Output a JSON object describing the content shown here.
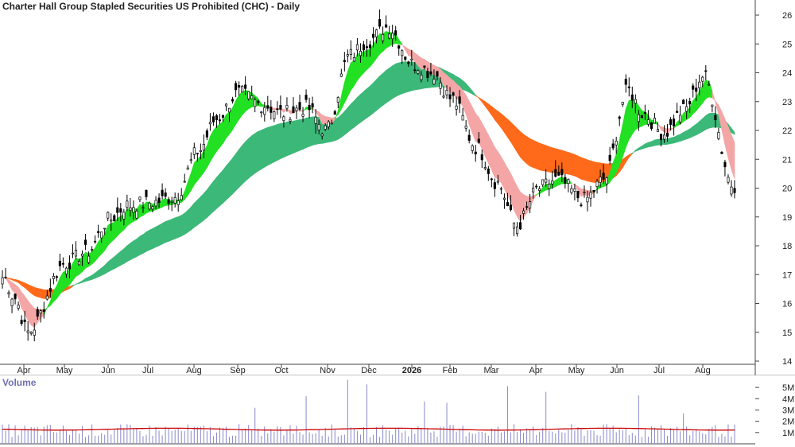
{
  "title": "Charter Hall Group Stapled Securities US Prohibited (CHC) - Daily",
  "volume_title": "Volume",
  "colors": {
    "up_band": "#22e022",
    "down_band": "#ff6a1a",
    "long_band": "#3cb878",
    "transition_band": "#f4a6a6",
    "candle": "#000000",
    "volume_bar": "#8888cc",
    "volume_ma": "#cc0000",
    "grid": "#dddddd"
  },
  "chart_data": [
    {
      "type": "candlestick",
      "title": "Charter Hall Group Stapled Securities US Prohibited (CHC) - Daily",
      "x_ticks": [
        "Apr",
        "May",
        "Jun",
        "Jul",
        "Aug",
        "Sep",
        "Oct",
        "Nov",
        "Dec",
        "2026",
        "Feb",
        "Mar",
        "Apr",
        "May",
        "Jun",
        "Jul",
        "Aug"
      ],
      "y_ticks": [
        14,
        15,
        16,
        17,
        18,
        19,
        20,
        21,
        22,
        23,
        24,
        25,
        26
      ],
      "ylim": [
        13.8,
        26.6
      ],
      "y_axis_side": "right",
      "grid": false,
      "close_path": [
        [
          "Apr",
          16.9
        ],
        [
          "Apr",
          16.2
        ],
        [
          "Apr",
          15.0
        ],
        [
          "May",
          17.4
        ],
        [
          "May",
          17.8
        ],
        [
          "Jun",
          18.9
        ],
        [
          "Jun",
          19.4
        ],
        [
          "Jul",
          19.5
        ],
        [
          "Jul",
          19.7
        ],
        [
          "Aug",
          21.3
        ],
        [
          "Aug",
          22.4
        ],
        [
          "Sep",
          23.3
        ],
        [
          "Sep",
          22.9
        ],
        [
          "Oct",
          22.6
        ],
        [
          "Oct",
          22.8
        ],
        [
          "Nov",
          22.0
        ],
        [
          "Nov",
          24.6
        ],
        [
          "Dec",
          25.1
        ],
        [
          "Dec",
          25.6
        ],
        [
          "2026",
          24.3
        ],
        [
          "2026",
          24.0
        ],
        [
          "Feb",
          23.1
        ],
        [
          "Feb",
          21.4
        ],
        [
          "Mar",
          20.2
        ],
        [
          "Mar",
          18.7
        ],
        [
          "Apr",
          20.0
        ],
        [
          "Apr",
          20.3
        ],
        [
          "May",
          19.6
        ],
        [
          "May",
          20.3
        ],
        [
          "Jun",
          23.4
        ],
        [
          "Jun",
          22.6
        ],
        [
          "Jul",
          21.9
        ],
        [
          "Jul",
          22.7
        ],
        [
          "Aug",
          23.9
        ],
        [
          "Aug",
          20.1
        ]
      ],
      "series": [
        {
          "values_note": "short-term moving average band (green rising, orange falling)"
        },
        {
          "values_note": "long-term moving average band (dark green rising, orange falling)"
        }
      ]
    },
    {
      "type": "bar",
      "title": "Volume",
      "y_ticks": [
        "1M",
        "2M",
        "3M",
        "4M",
        "5M"
      ],
      "ylim": [
        0,
        5500000
      ],
      "typical_volume": 1300000,
      "moving_average": 1300000
    }
  ]
}
